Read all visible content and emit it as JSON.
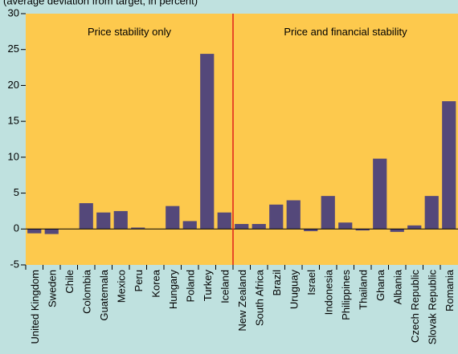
{
  "chart_data": {
    "type": "bar",
    "subtitle": "(average deviation from target, in percent)",
    "regions": [
      "Price stability only",
      "Price and financial stability"
    ],
    "categories": [
      "United Kingdom",
      "Sweden",
      "Chile",
      "Colombia",
      "Guatemala",
      "Mexico",
      "Peru",
      "Korea",
      "Hungary",
      "Poland",
      "Turkey",
      "Iceland",
      "New Zealand",
      "South Africa",
      "Brazil",
      "Uruguay",
      "Israel",
      "Indonesia",
      "Philippines",
      "Thailand",
      "Ghana",
      "Albania",
      "Czech Republic",
      "Slovak Republic",
      "Romania"
    ],
    "values": [
      -0.6,
      -0.7,
      0,
      3.6,
      2.3,
      2.5,
      0.2,
      0,
      3.2,
      1.1,
      24.4,
      2.3,
      0.7,
      0.7,
      3.4,
      4.0,
      -0.3,
      4.6,
      0.9,
      -0.2,
      9.8,
      -0.4,
      0.5,
      4.6,
      17.8
    ],
    "color": "#54487a",
    "ylim": [
      -5,
      30
    ],
    "yticks": [
      -5,
      0,
      5,
      10,
      15,
      20,
      25,
      30
    ]
  }
}
